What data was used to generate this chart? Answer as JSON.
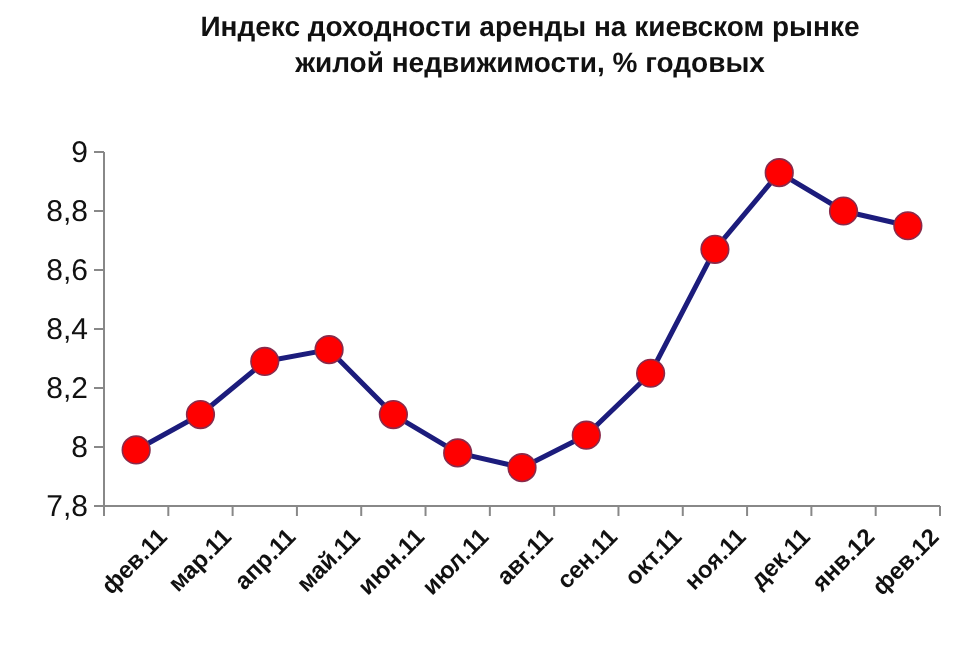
{
  "chart_data": {
    "type": "line",
    "title": "Индекс доходности аренды на киевском рынке жилой недвижимости, % годовых",
    "categories": [
      "фев.11",
      "мар.11",
      "апр.11",
      "май.11",
      "июн.11",
      "июл.11",
      "авг.11",
      "сен.11",
      "окт.11",
      "ноя.11",
      "дек.11",
      "янв.12",
      "фев.12"
    ],
    "series": [
      {
        "color": "#1c1c7c",
        "values": [
          7.99,
          8.11,
          8.29,
          8.33,
          8.11,
          7.98,
          7.93,
          8.04,
          8.25,
          8.67,
          8.93,
          8.8,
          8.75
        ]
      }
    ],
    "ylim": [
      7.8,
      9
    ],
    "yticks": [
      {
        "value": 7.8,
        "label": "7,8"
      },
      {
        "value": 8,
        "label": "8"
      },
      {
        "value": 8.2,
        "label": "8,2"
      },
      {
        "value": 8.4,
        "label": "8,4"
      },
      {
        "value": 8.6,
        "label": "8,6"
      },
      {
        "value": 8.8,
        "label": "8,8"
      },
      {
        "value": 9,
        "label": "9"
      }
    ],
    "grid": false,
    "marker": "circle",
    "line_style": "solid"
  }
}
